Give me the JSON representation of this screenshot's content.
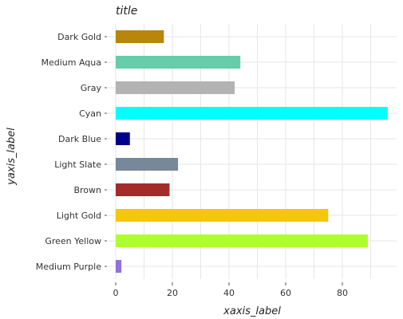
{
  "chart_data": {
    "type": "bar",
    "orientation": "horizontal",
    "title": "title",
    "xlabel": "xaxis_label",
    "ylabel": "yaxis_label",
    "xlim": [
      0,
      97
    ],
    "xticks": [
      0,
      20,
      40,
      60,
      80
    ],
    "grid": true,
    "categories": [
      "Medium Purple",
      "Green Yellow",
      "Light Gold",
      "Brown",
      "Light Slate",
      "Dark Blue",
      "Cyan",
      "Gray",
      "Medium Aqua",
      "Dark Gold"
    ],
    "values": [
      2,
      89,
      75,
      19,
      22,
      5,
      96,
      42,
      44,
      17
    ],
    "colors": [
      "#9370db",
      "#adff2f",
      "#f5c60b",
      "#a52a2a",
      "#778899",
      "#00008b",
      "#00ffff",
      "#b3b3b3",
      "#66cdaa",
      "#b8860b"
    ]
  }
}
